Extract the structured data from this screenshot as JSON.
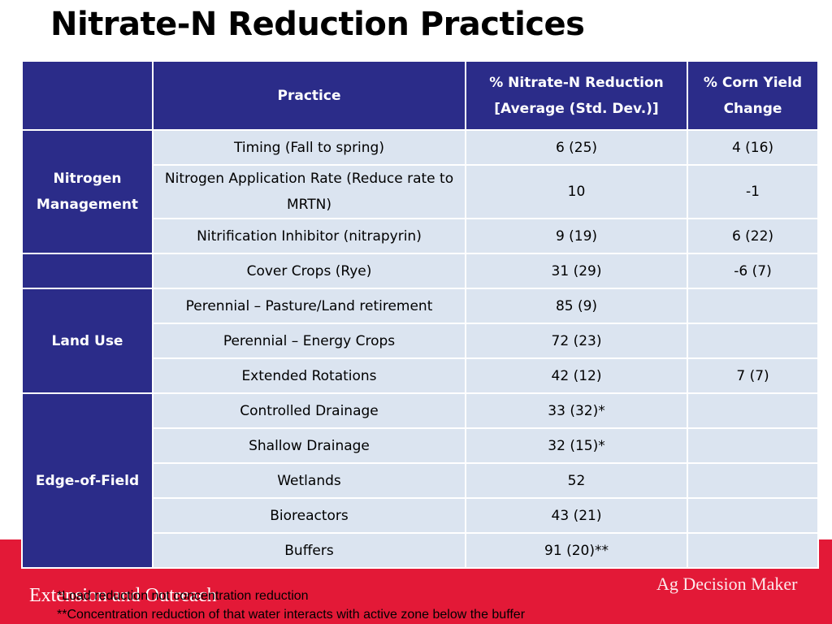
{
  "title": "Nitrate-N Reduction Practices",
  "table": {
    "headers": [
      "",
      "Practice",
      "% Nitrate-N Reduction [Average (Std. Dev.)]",
      "% Corn Yield Change"
    ],
    "categories": [
      "Nitrogen Management",
      "Land Use",
      "Edge-of-Field"
    ],
    "rows": [
      {
        "practice": "Timing (Fall to spring)",
        "reduction": "6 (25)",
        "yield": "4 (16)"
      },
      {
        "practice": "Nitrogen Application Rate (Reduce rate to MRTN)",
        "reduction": "10",
        "yield": "-1"
      },
      {
        "practice": "Nitrification Inhibitor (nitrapyrin)",
        "reduction": "9 (19)",
        "yield": "6 (22)"
      },
      {
        "practice": "Cover Crops (Rye)",
        "reduction": "31 (29)",
        "yield": "-6 (7)"
      },
      {
        "practice": "Perennial – Pasture/Land retirement",
        "reduction": "85 (9)",
        "yield": ""
      },
      {
        "practice": "Perennial – Energy Crops",
        "reduction": "72 (23)",
        "yield": ""
      },
      {
        "practice": "Extended Rotations",
        "reduction": "42 (12)",
        "yield": "7 (7)"
      },
      {
        "practice": "Controlled Drainage",
        "reduction": "33 (32)*",
        "yield": ""
      },
      {
        "practice": "Shallow Drainage",
        "reduction": "32 (15)*",
        "yield": ""
      },
      {
        "practice": "Wetlands",
        "reduction": "52",
        "yield": ""
      },
      {
        "practice": "Bioreactors",
        "reduction": "43 (21)",
        "yield": ""
      },
      {
        "practice": "Buffers",
        "reduction": "91 (20)**",
        "yield": ""
      }
    ]
  },
  "footnotes": [
    "*Load reduction not concentration reduction",
    "**Concentration reduction of that water interacts with active zone below the buffer"
  ],
  "footer": {
    "left_text": "Extension and Outreach",
    "right_text": "Ag Decision Maker"
  },
  "colors": {
    "header_bg": "#2b2c89",
    "cell_bg": "#dbe4f0",
    "footer_band": "#e31937"
  }
}
